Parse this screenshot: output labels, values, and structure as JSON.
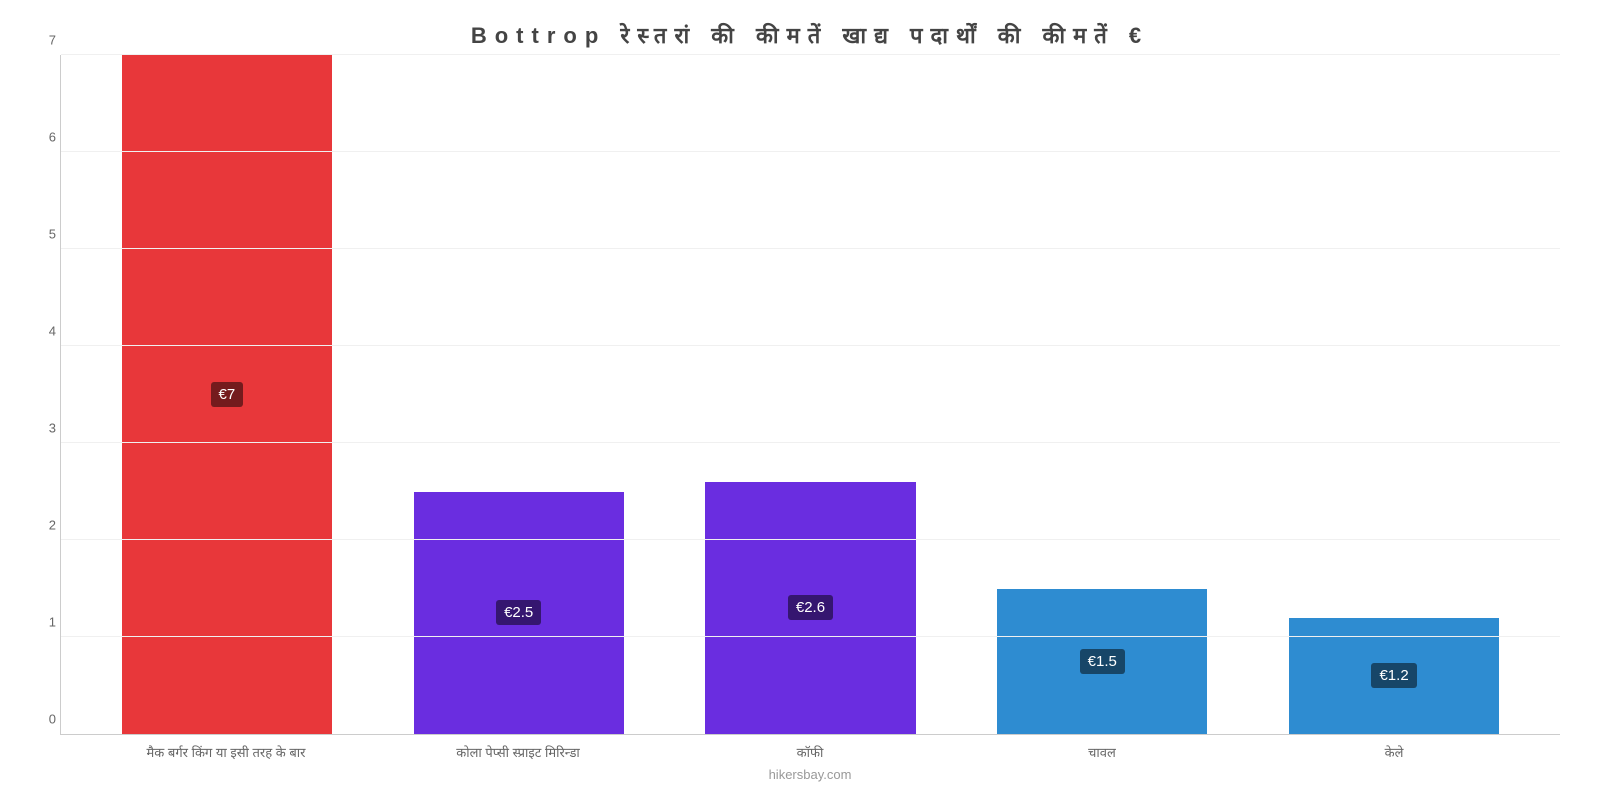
{
  "chart": {
    "type": "bar",
    "title": "Bottrop रेस्तरां की कीमतें खाद्य पदार्थों की कीमतें €",
    "title_fontsize": 22,
    "title_color": "#444444",
    "attribution": "hikersbay.com",
    "attribution_color": "#999999",
    "background_color": "#ffffff",
    "grid_color": "#f0f0f0",
    "axis_color": "#cccccc",
    "label_color": "#666666",
    "ylim": [
      0,
      7
    ],
    "ytick_step": 1,
    "yticks": [
      0,
      1,
      2,
      3,
      4,
      5,
      6,
      7
    ],
    "bar_width_ratio": 0.72,
    "categories": [
      "मैक बर्गर किंग या इसी तरह के बार",
      "कोला पेप्सी स्प्राइट मिरिन्डा",
      "कॉफी",
      "चावल",
      "केले"
    ],
    "values": [
      7,
      2.5,
      2.6,
      1.5,
      1.2
    ],
    "value_labels": [
      "€7",
      "€2.5",
      "€2.6",
      "€1.5",
      "€1.2"
    ],
    "bar_colors": [
      "#e8373a",
      "#6a2de0",
      "#6a2de0",
      "#2e8cd1",
      "#2e8cd1"
    ],
    "value_label_bg": "rgba(0,0,0,0.5)",
    "value_label_text_color": "#ffffff",
    "x_label_fontsize": 13,
    "y_label_fontsize": 13,
    "value_label_fontsize": 15
  }
}
